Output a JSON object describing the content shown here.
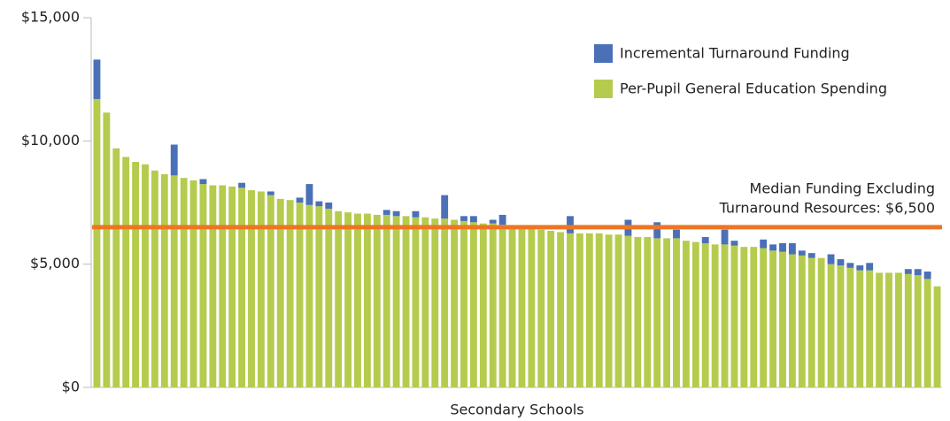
{
  "chart_data": {
    "type": "stacked_bar",
    "xlabel": "Secondary Schools",
    "categories": [
      null,
      null,
      null,
      null,
      null,
      null,
      null,
      null,
      null,
      null,
      null,
      null,
      null,
      null,
      null,
      null,
      null,
      null,
      null,
      null,
      null,
      null,
      null,
      null,
      null,
      null,
      null,
      null,
      null,
      null,
      null,
      null,
      null,
      null,
      null,
      null,
      null,
      null,
      null,
      null,
      null,
      null,
      null,
      null,
      null,
      null,
      null,
      null,
      null,
      null,
      null,
      null,
      null,
      null,
      null,
      null,
      null,
      null,
      null,
      null,
      null,
      null,
      null,
      null,
      null,
      null,
      null,
      null,
      null,
      null,
      null,
      null,
      null,
      null,
      null,
      null,
      null,
      null,
      null,
      null,
      null,
      null,
      null,
      null,
      null,
      null,
      null,
      null
    ],
    "series": [
      {
        "name": "Per-Pupil General Education Spending",
        "color": "#b5cb4e",
        "values": [
          11700,
          11150,
          9700,
          9350,
          9150,
          9050,
          8800,
          8650,
          8600,
          8500,
          8400,
          8250,
          8200,
          8200,
          8150,
          8100,
          8000,
          7950,
          7800,
          7650,
          7600,
          7500,
          7400,
          7350,
          7250,
          7150,
          7100,
          7050,
          7050,
          7000,
          7000,
          6950,
          6950,
          6900,
          6900,
          6850,
          6850,
          6800,
          6750,
          6700,
          6650,
          6650,
          6600,
          6500,
          6500,
          6450,
          6400,
          6350,
          6300,
          6250,
          6250,
          6250,
          6250,
          6200,
          6200,
          6150,
          6100,
          6100,
          6050,
          6050,
          6050,
          5950,
          5900,
          5850,
          5800,
          5800,
          5750,
          5700,
          5700,
          5650,
          5550,
          5500,
          5400,
          5350,
          5250,
          5250,
          5000,
          4950,
          4850,
          4750,
          4750,
          4650,
          4650,
          4650,
          4600,
          4550,
          4400,
          4100
        ]
      },
      {
        "name": "Incremental Turnaround Funding",
        "color": "#4a70b8",
        "values": [
          1600,
          0,
          0,
          0,
          0,
          0,
          0,
          0,
          1250,
          0,
          0,
          200,
          0,
          0,
          0,
          200,
          0,
          0,
          150,
          0,
          0,
          200,
          850,
          200,
          250,
          0,
          0,
          0,
          0,
          0,
          200,
          200,
          0,
          250,
          0,
          0,
          950,
          0,
          200,
          250,
          0,
          150,
          400,
          0,
          0,
          0,
          0,
          0,
          0,
          700,
          0,
          0,
          0,
          0,
          0,
          650,
          0,
          0,
          650,
          0,
          350,
          0,
          0,
          250,
          0,
          600,
          200,
          0,
          0,
          350,
          250,
          350,
          450,
          200,
          200,
          0,
          400,
          250,
          200,
          200,
          300,
          0,
          0,
          0,
          200,
          250,
          300,
          0
        ]
      }
    ],
    "annotation": {
      "lines": [
        "Median Funding Excluding",
        "Turnaround Resources: $6,500"
      ],
      "value": 6500,
      "color": "#ee7623"
    },
    "ylim": [
      0,
      15000
    ],
    "yticks": [
      {
        "value": 0,
        "label": "$0"
      },
      {
        "value": 5000,
        "label": "$5,000"
      },
      {
        "value": 10000,
        "label": "$10,000"
      },
      {
        "value": 15000,
        "label": "$15,000"
      }
    ],
    "grid": false,
    "legend": "upper right"
  }
}
